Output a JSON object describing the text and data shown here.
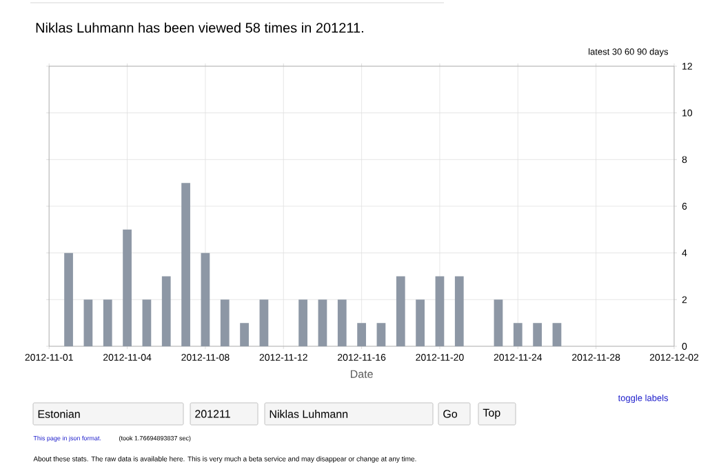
{
  "chart_data": {
    "type": "bar",
    "title": "Niklas Luhmann has been viewed 58 times in 201211.",
    "xlabel": "Date",
    "x": [
      "2012-11-01",
      "2012-11-02",
      "2012-11-03",
      "2012-11-04",
      "2012-11-05",
      "2012-11-06",
      "2012-11-07",
      "2012-11-08",
      "2012-11-09",
      "2012-11-10",
      "2012-11-11",
      "2012-11-12",
      "2012-11-13",
      "2012-11-14",
      "2012-11-15",
      "2012-11-16",
      "2012-11-17",
      "2012-11-18",
      "2012-11-19",
      "2012-11-20",
      "2012-11-21",
      "2012-11-22",
      "2012-11-23",
      "2012-11-24",
      "2012-11-25",
      "2012-11-26",
      "2012-11-27",
      "2012-11-28",
      "2012-11-29",
      "2012-11-30"
    ],
    "values": [
      4,
      2,
      2,
      5,
      2,
      3,
      7,
      4,
      2,
      1,
      2,
      0,
      2,
      2,
      2,
      1,
      1,
      3,
      2,
      3,
      3,
      0,
      2,
      1,
      1,
      1,
      0,
      0,
      0,
      0
    ],
    "color": "#8d97a5",
    "xlim": [
      "2012-10-31",
      "2012-12-02"
    ],
    "xticks": [
      {
        "value": "2012-10-31",
        "label": "2012-11-01"
      },
      "2012-11-04",
      "2012-11-08",
      "2012-11-12",
      "2012-11-16",
      "2012-11-20",
      "2012-11-24",
      "2012-11-28",
      "2012-12-02"
    ],
    "ylim": [
      0,
      12
    ],
    "yticks": [
      0,
      2,
      4,
      6,
      8,
      10,
      12
    ],
    "grid": true,
    "annotations": [
      "latest 30 60 90 days",
      "toggle labels",
      "Estonian",
      "201211",
      "Niklas Luhmann",
      "Go",
      "Top",
      "This page in json format.",
      "(took 1.76694893837 sec)",
      "About these stats. The raw data is available here. This is very much a beta service and may disappear or change at any time."
    ]
  }
}
